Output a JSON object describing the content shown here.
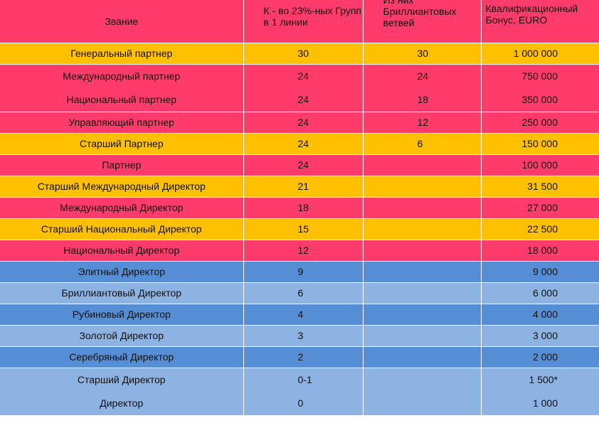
{
  "header": {
    "rank": "Звание",
    "groups": "К - во 23%-ных Групп в 1 линии",
    "diamond": "Из них Бриллиантовых ветвей",
    "bonus": "Квалификационный Бонус, EURO"
  },
  "rows": [
    {
      "rank": "Генеральный партнер",
      "groups": "30",
      "diamond": "30",
      "bonus": "1 000 000",
      "color": "#ffc000"
    },
    {
      "rank": "Международный партнер",
      "groups": "24",
      "diamond": "24",
      "bonus": "750 000",
      "color": "#ff3b6b"
    },
    {
      "rank": "Национальный партнер",
      "groups": "24",
      "diamond": "18",
      "bonus": "350 000",
      "color": "#ff3b6b"
    },
    {
      "rank": "Управляющий партнер",
      "groups": "24",
      "diamond": "12",
      "bonus": "250 000",
      "color": "#ff3b6b"
    },
    {
      "rank": "Старший Партнер",
      "groups": "24",
      "diamond": "6",
      "bonus": "150 000",
      "color": "#ffc000"
    },
    {
      "rank": "Партнер",
      "groups": "24",
      "diamond": "",
      "bonus": "100 000",
      "color": "#ff3b6b"
    },
    {
      "rank": "Старший Международный Директор",
      "groups": "21",
      "diamond": "",
      "bonus": "31 500",
      "color": "#ffc000"
    },
    {
      "rank": "Международный Директор",
      "groups": "18",
      "diamond": "",
      "bonus": "27 000",
      "color": "#ff3b6b"
    },
    {
      "rank": "Старший Национальный Директор",
      "groups": "15",
      "diamond": "",
      "bonus": "22 500",
      "color": "#ffc000"
    },
    {
      "rank": "Национальный Директор",
      "groups": "12",
      "diamond": "",
      "bonus": "18 000",
      "color": "#ff3b6b"
    },
    {
      "rank": "Элитный Директор",
      "groups": "9",
      "diamond": "",
      "bonus": "9 000",
      "color": "#558ed5"
    },
    {
      "rank": "Бриллиантовый Директор",
      "groups": "6",
      "diamond": "",
      "bonus": "6 000",
      "color": "#8db3e2"
    },
    {
      "rank": "Рубиновый Директор",
      "groups": "4",
      "diamond": "",
      "bonus": "4 000",
      "color": "#558ed5"
    },
    {
      "rank": "Золотой Директор",
      "groups": "3",
      "diamond": "",
      "bonus": "3 000",
      "color": "#8db3e2"
    },
    {
      "rank": "Серебряный Директор",
      "groups": "2",
      "diamond": "",
      "bonus": "2 000",
      "color": "#558ed5"
    },
    {
      "rank": "Старший Директор",
      "groups": "0-1",
      "diamond": "",
      "bonus": "1 500*",
      "color": "#8db3e2"
    },
    {
      "rank": "Директор",
      "groups": "0",
      "diamond": "",
      "bonus": "1 000",
      "color": "#8db3e2"
    }
  ]
}
